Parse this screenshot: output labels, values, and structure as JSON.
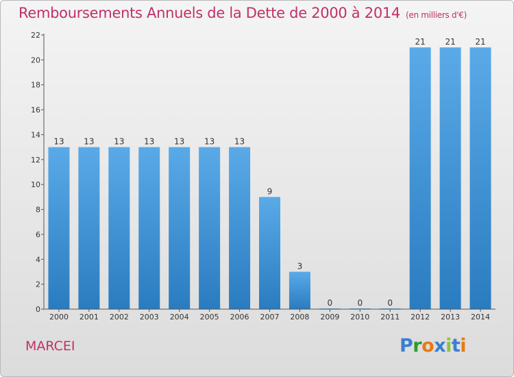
{
  "title": "Remboursements Annuels de la Dette de 2000 à 2014",
  "unit": "(en milliers d'€)",
  "commune": "MARCEI",
  "logo": {
    "text": "Proxiti",
    "letter_colors": [
      "#3a7fd0",
      "#2e9a2e",
      "#e87a10",
      "#3a7fd0",
      "#8bc53f",
      "#3a7fd0",
      "#e87a10"
    ]
  },
  "colors": {
    "bar_top": "#5aaae8",
    "bar_bottom": "#2a7cc0",
    "title": "#c03068"
  },
  "chart_data": {
    "type": "bar",
    "categories": [
      "2000",
      "2001",
      "2002",
      "2003",
      "2004",
      "2005",
      "2006",
      "2007",
      "2008",
      "2009",
      "2010",
      "2011",
      "2012",
      "2013",
      "2014"
    ],
    "values": [
      13,
      13,
      13,
      13,
      13,
      13,
      13,
      9,
      3,
      0,
      0,
      0,
      21,
      21,
      21
    ],
    "data_labels": [
      "13",
      "13",
      "13",
      "13",
      "13",
      "13",
      "13",
      "9",
      "3",
      "0",
      "0",
      "0",
      "21",
      "21",
      "21"
    ],
    "title": "Remboursements Annuels de la Dette de 2000 à 2014",
    "xlabel": "",
    "ylabel": "",
    "ylim": [
      0,
      22
    ],
    "yticks": [
      0,
      2,
      4,
      6,
      8,
      10,
      12,
      14,
      16,
      18,
      20,
      22
    ],
    "grid": false,
    "legend": "none"
  }
}
